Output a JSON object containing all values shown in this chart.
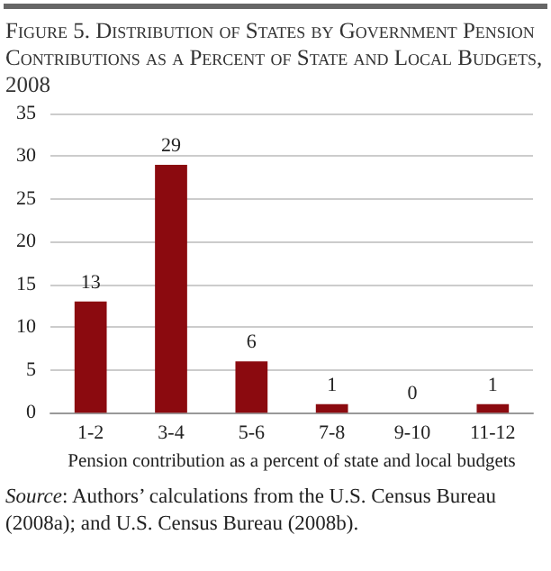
{
  "chart_data": {
    "type": "bar",
    "title": "Figure 5. Distribution of States by Government Pension Contributions as a Percent of State and Local Budgets, 2008",
    "categories": [
      "1-2",
      "3-4",
      "5-6",
      "7-8",
      "9-10",
      "11-12"
    ],
    "values": [
      13,
      29,
      6,
      1,
      0,
      1
    ],
    "color": "#8b0a0f",
    "xlabel": "Pension contribution as a percent of state and local budgets",
    "ylim": [
      0,
      35
    ],
    "yticks": [
      0,
      5,
      10,
      15,
      20,
      25,
      30,
      35
    ],
    "grid": "y",
    "data_labels": true,
    "annotations": [
      "Source: Authors’ calculations from the U.S. Census Bureau (2008a); and U.S. Census Bureau (2008b)."
    ]
  }
}
